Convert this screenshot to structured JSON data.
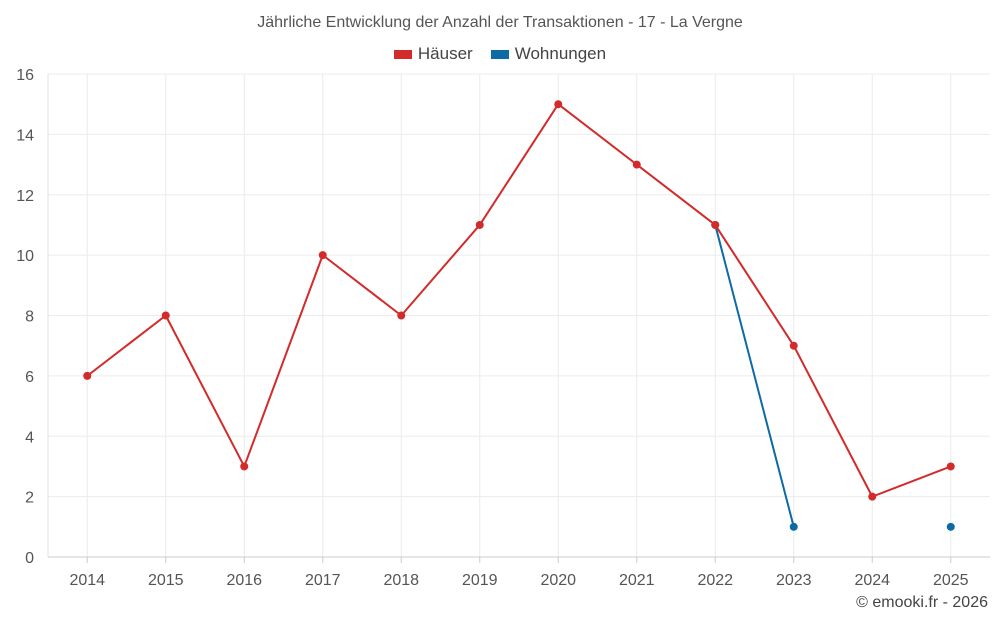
{
  "chart_data": {
    "type": "line",
    "title": "Jährliche Entwicklung der Anzahl der Transaktionen - 17 - La Vergne",
    "categories": [
      "2014",
      "2015",
      "2016",
      "2017",
      "2018",
      "2019",
      "2020",
      "2021",
      "2022",
      "2023",
      "2024",
      "2025"
    ],
    "ylim": [
      0,
      16
    ],
    "yticks": [
      0,
      2,
      4,
      6,
      8,
      10,
      12,
      14,
      16
    ],
    "grid": true,
    "legend_position": "top-center",
    "series": [
      {
        "name": "Häuser",
        "color": "#d32a2a",
        "values": [
          6,
          8,
          3,
          10,
          8,
          11,
          15,
          13,
          11,
          7,
          2,
          3
        ]
      },
      {
        "name": "Wohnungen",
        "color": "#0d6aa4",
        "values": [
          null,
          null,
          null,
          null,
          null,
          null,
          null,
          null,
          11,
          1,
          null,
          1
        ]
      }
    ]
  },
  "credit": "© emooki.fr - 2026"
}
